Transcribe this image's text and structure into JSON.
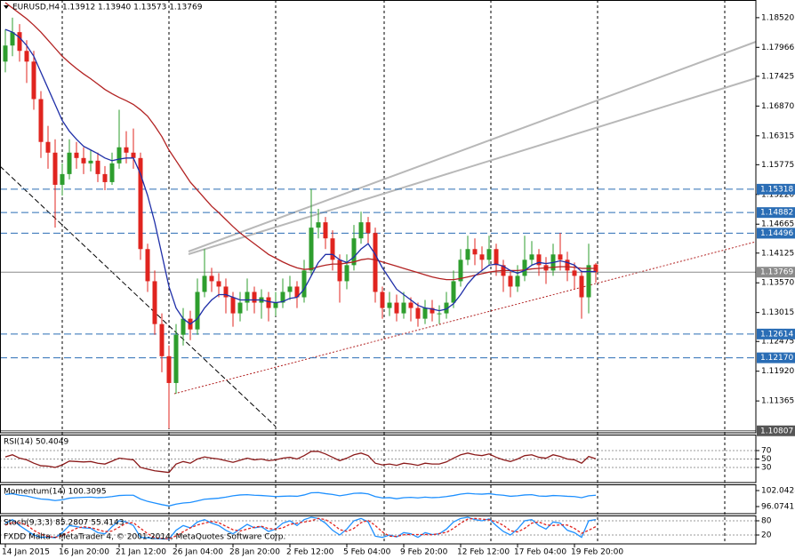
{
  "chart_data": [
    {
      "type": "candlestick",
      "title": "EURUSD,H4 1.13912 1.13940 1.13573 1.13769",
      "categories": [
        "14 Jan 2015",
        null,
        null,
        null,
        null,
        null,
        null,
        null,
        "16 Jan 20:00",
        null,
        null,
        null,
        null,
        null,
        null,
        null,
        "21 Jan 12:00",
        null,
        null,
        null,
        null,
        null,
        null,
        null,
        "26 Jan 04:00",
        null,
        null,
        null,
        null,
        null,
        null,
        null,
        "28 Jan 20:00",
        null,
        null,
        null,
        null,
        null,
        null,
        null,
        "2 Feb 12:00",
        null,
        null,
        null,
        null,
        null,
        null,
        null,
        "5 Feb 04:00",
        null,
        null,
        null,
        null,
        null,
        null,
        null,
        "9 Feb 20:00",
        null,
        null,
        null,
        null,
        null,
        null,
        null,
        "12 Feb 12:00",
        null,
        null,
        null,
        null,
        null,
        null,
        null,
        "17 Feb 04:00",
        null,
        null,
        null,
        null,
        null,
        null,
        null,
        "19 Feb 20:00",
        null,
        null,
        null
      ],
      "open": [
        1.177,
        1.18,
        1.1825,
        1.179,
        1.177,
        1.17,
        1.162,
        1.16,
        1.154,
        1.156,
        1.16,
        1.159,
        1.158,
        1.1585,
        1.156,
        1.1545,
        1.158,
        1.161,
        1.16,
        1.159,
        1.142,
        1.136,
        1.128,
        1.122,
        1.117,
        1.126,
        1.129,
        1.127,
        1.134,
        1.137,
        1.136,
        1.135,
        1.133,
        1.13,
        1.132,
        1.134,
        1.132,
        1.133,
        1.131,
        1.132,
        1.134,
        1.135,
        1.133,
        1.138,
        1.146,
        1.147,
        1.144,
        1.14,
        1.136,
        1.139,
        1.144,
        1.147,
        1.145,
        1.134,
        1.131,
        1.132,
        1.13,
        1.132,
        1.131,
        1.129,
        1.131,
        1.13,
        1.13,
        1.132,
        1.136,
        1.14,
        1.142,
        1.141,
        1.14,
        1.142,
        1.139,
        1.137,
        1.135,
        1.137,
        1.14,
        1.141,
        1.139,
        1.138,
        1.141,
        1.14,
        1.138,
        1.137,
        1.133,
        1.13912
      ],
      "high": [
        1.183,
        1.1852,
        1.184,
        1.181,
        1.179,
        1.1715,
        1.165,
        1.1625,
        1.158,
        1.1625,
        1.162,
        1.161,
        1.1605,
        1.16,
        1.1575,
        1.16,
        1.168,
        1.164,
        1.1645,
        1.16,
        1.143,
        1.138,
        1.13,
        1.124,
        1.128,
        1.131,
        1.1305,
        1.1365,
        1.142,
        1.1385,
        1.1375,
        1.1365,
        1.134,
        1.134,
        1.1365,
        1.135,
        1.1345,
        1.134,
        1.134,
        1.1365,
        1.137,
        1.136,
        1.14,
        1.1532,
        1.1495,
        1.148,
        1.1455,
        1.141,
        1.141,
        1.1465,
        1.149,
        1.148,
        1.146,
        1.135,
        1.134,
        1.1335,
        1.134,
        1.133,
        1.132,
        1.1325,
        1.1325,
        1.1315,
        1.134,
        1.138,
        1.142,
        1.1445,
        1.144,
        1.1425,
        1.1445,
        1.143,
        1.14,
        1.138,
        1.139,
        1.1445,
        1.1435,
        1.142,
        1.1405,
        1.143,
        1.145,
        1.1415,
        1.1395,
        1.138,
        1.143,
        1.1394
      ],
      "low": [
        1.175,
        1.178,
        1.177,
        1.173,
        1.168,
        1.159,
        1.157,
        1.146,
        1.152,
        1.155,
        1.157,
        1.156,
        1.1565,
        1.1545,
        1.153,
        1.154,
        1.157,
        1.158,
        1.157,
        1.14,
        1.134,
        1.126,
        1.119,
        1.1085,
        1.115,
        1.124,
        1.125,
        1.126,
        1.133,
        1.134,
        1.133,
        1.13,
        1.1275,
        1.1285,
        1.1305,
        1.13,
        1.129,
        1.1285,
        1.1295,
        1.131,
        1.1325,
        1.131,
        1.132,
        1.137,
        1.144,
        1.142,
        1.138,
        1.132,
        1.1345,
        1.138,
        1.143,
        1.143,
        1.132,
        1.129,
        1.1295,
        1.1285,
        1.129,
        1.1285,
        1.1275,
        1.128,
        1.1285,
        1.128,
        1.129,
        1.131,
        1.135,
        1.139,
        1.139,
        1.138,
        1.139,
        1.137,
        1.134,
        1.133,
        1.134,
        1.136,
        1.139,
        1.137,
        1.1355,
        1.137,
        1.138,
        1.136,
        1.1345,
        1.129,
        1.13,
        1.13573
      ],
      "close": [
        1.18,
        1.1825,
        1.179,
        1.177,
        1.17,
        1.162,
        1.16,
        1.154,
        1.156,
        1.16,
        1.159,
        1.158,
        1.1585,
        1.156,
        1.1545,
        1.158,
        1.161,
        1.16,
        1.159,
        1.142,
        1.136,
        1.128,
        1.122,
        1.117,
        1.126,
        1.129,
        1.127,
        1.134,
        1.137,
        1.136,
        1.135,
        1.133,
        1.13,
        1.132,
        1.134,
        1.132,
        1.133,
        1.131,
        1.132,
        1.134,
        1.135,
        1.133,
        1.138,
        1.146,
        1.147,
        1.144,
        1.14,
        1.136,
        1.139,
        1.144,
        1.147,
        1.145,
        1.134,
        1.131,
        1.132,
        1.13,
        1.132,
        1.131,
        1.129,
        1.131,
        1.13,
        1.13,
        1.132,
        1.136,
        1.14,
        1.142,
        1.141,
        1.14,
        1.142,
        1.139,
        1.137,
        1.135,
        1.137,
        1.14,
        1.141,
        1.139,
        1.138,
        1.141,
        1.14,
        1.138,
        1.137,
        1.133,
        1.139,
        1.13769
      ],
      "up_color": "#2e9e2e",
      "down_color": "#e0241f",
      "series": [
        {
          "color": "#b22222",
          "values": [
            1.188,
            1.187,
            1.186,
            1.185,
            1.1838,
            1.1825,
            1.181,
            1.1795,
            1.178,
            1.1768,
            1.1757,
            1.1747,
            1.1738,
            1.1728,
            1.1718,
            1.171,
            1.1703,
            1.1697,
            1.169,
            1.168,
            1.1668,
            1.165,
            1.163,
            1.1605,
            1.1585,
            1.1565,
            1.1545,
            1.153,
            1.1515,
            1.15,
            1.1488,
            1.1475,
            1.1462,
            1.145,
            1.144,
            1.143,
            1.142,
            1.141,
            1.1403,
            1.1396,
            1.139,
            1.1385,
            1.1382,
            1.1383,
            1.1387,
            1.139,
            1.1392,
            1.1392,
            1.1394,
            1.1396,
            1.14,
            1.1402,
            1.14,
            1.1396,
            1.1392,
            1.1388,
            1.1384,
            1.138,
            1.1376,
            1.1372,
            1.1368,
            1.1365,
            1.1363,
            1.1363,
            1.1365,
            1.1368,
            1.1371,
            1.1374,
            1.1377,
            1.1379,
            1.138,
            1.138,
            1.138,
            1.1381,
            1.1383,
            1.1384,
            1.1385,
            1.1386,
            1.1387,
            1.1387,
            1.1386,
            1.1384,
            1.1384,
            1.1384
          ]
        },
        {
          "color": "#1f2fa8",
          "values": [
            1.183,
            1.1825,
            1.1815,
            1.18,
            1.178,
            1.175,
            1.172,
            1.169,
            1.166,
            1.164,
            1.1625,
            1.1612,
            1.1605,
            1.1598,
            1.159,
            1.1585,
            1.1588,
            1.159,
            1.159,
            1.156,
            1.152,
            1.147,
            1.141,
            1.135,
            1.131,
            1.129,
            1.128,
            1.129,
            1.131,
            1.1325,
            1.1335,
            1.1335,
            1.133,
            1.1325,
            1.1325,
            1.1325,
            1.1325,
            1.1322,
            1.132,
            1.1322,
            1.1328,
            1.133,
            1.1345,
            1.137,
            1.1395,
            1.141,
            1.141,
            1.14,
            1.1395,
            1.1405,
            1.142,
            1.143,
            1.141,
            1.1385,
            1.1365,
            1.1345,
            1.1335,
            1.1325,
            1.1315,
            1.131,
            1.1308,
            1.1305,
            1.1308,
            1.1318,
            1.1335,
            1.1355,
            1.137,
            1.138,
            1.139,
            1.1392,
            1.1388,
            1.138,
            1.1375,
            1.138,
            1.139,
            1.1395,
            1.1393,
            1.1395,
            1.1398,
            1.1395,
            1.139,
            1.1378,
            1.1378,
            1.1378
          ]
        }
      ],
      "ylim": [
        1.1077,
        1.1885
      ],
      "yticks": [
        {
          "value": 1.1852,
          "label": "1.18520"
        },
        1.17966,
        1.17425,
        {
          "value": 1.1687,
          "label": "1.16870"
        },
        1.16315,
        1.15775,
        {
          "value": 1.1522,
          "label": "1.15220"
        },
        1.14665,
        1.14125,
        {
          "value": 1.1357,
          "label": "1.13570"
        },
        1.13015,
        1.12475,
        {
          "value": 1.1192,
          "label": "1.11920"
        },
        1.11365
      ],
      "grid": false,
      "levels": [
        {
          "value": 1.15318,
          "label": "1.15318",
          "color": "#2a6db5",
          "style": "dashed"
        },
        {
          "value": 1.14882,
          "label": "1.14882",
          "color": "#2a6db5",
          "style": "dashed"
        },
        {
          "value": 1.14496,
          "label": "1.14496",
          "color": "#2a6db5",
          "style": "dashed"
        },
        {
          "value": 1.13769,
          "label": "1.13769",
          "color": "#8a8a8a",
          "style": "solid"
        },
        {
          "value": 1.12614,
          "label": "1.12614",
          "color": "#2a6db5",
          "style": "dashed"
        },
        {
          "value": 1.1217,
          "label": "1.12170",
          "color": "#2a6db5",
          "style": "dashed"
        },
        {
          "value": 1.10807,
          "label": "1.10807",
          "color": "#555555",
          "style": "solid"
        }
      ]
    },
    {
      "type": "line",
      "title": "RSI(14) 50.4049",
      "ylim": [
        -6,
        108
      ],
      "yticks": [
        30,
        50,
        70
      ],
      "grid": true,
      "series": [
        {
          "color": "#8b1a1a",
          "values": [
            55,
            60,
            52,
            48,
            40,
            34,
            33,
            30,
            36,
            45,
            44,
            43,
            44,
            40,
            38,
            45,
            52,
            50,
            48,
            30,
            26,
            22,
            20,
            18,
            38,
            44,
            40,
            50,
            55,
            52,
            50,
            46,
            42,
            47,
            52,
            48,
            50,
            46,
            48,
            52,
            54,
            50,
            58,
            68,
            68,
            62,
            54,
            46,
            52,
            60,
            64,
            58,
            40,
            36,
            38,
            35,
            40,
            38,
            35,
            40,
            38,
            38,
            43,
            52,
            60,
            64,
            60,
            58,
            62,
            54,
            48,
            44,
            50,
            58,
            60,
            54,
            52,
            60,
            56,
            50,
            48,
            40,
            56,
            50.4049
          ]
        }
      ]
    },
    {
      "type": "line",
      "title": "Momentum(14) 100.3095",
      "ylim": [
        93.42,
        104.36
      ],
      "yticks": [
        96.0741,
        102.0428
      ],
      "grid": false,
      "series": [
        {
          "color": "#1e90ff",
          "values": [
            100.6,
            100.9,
            100.3,
            100.0,
            99.4,
            98.9,
            98.7,
            98.3,
            98.6,
            99.2,
            99.4,
            99.5,
            99.6,
            99.4,
            99.5,
            99.8,
            100.2,
            100.3,
            100.3,
            98.9,
            98.0,
            97.4,
            96.8,
            96.3,
            97.0,
            97.4,
            97.6,
            98.2,
            98.8,
            99.0,
            99.2,
            99.6,
            100.1,
            100.4,
            100.5,
            100.3,
            100.2,
            100.0,
            99.8,
            99.9,
            100.0,
            99.9,
            100.4,
            101.2,
            101.3,
            100.9,
            100.6,
            100.1,
            100.5,
            101.0,
            101.1,
            100.8,
            99.8,
            99.3,
            99.4,
            99.0,
            99.4,
            99.5,
            99.3,
            99.6,
            99.4,
            99.5,
            99.8,
            100.2,
            100.7,
            101.0,
            100.8,
            100.7,
            100.9,
            100.5,
            100.3,
            99.9,
            100.1,
            100.4,
            100.5,
            100.0,
            99.9,
            100.2,
            100.1,
            99.9,
            99.8,
            99.4,
            100.1,
            100.3095
          ]
        }
      ]
    },
    {
      "type": "line",
      "title": "Stoch(9,3,3) 85.2807 55.4143",
      "ylim": [
        -17.5,
        102.5
      ],
      "yticks": [
        20,
        80
      ],
      "grid": true,
      "series": [
        {
          "color": "#1e90ff",
          "dash": false,
          "values": [
            70,
            85,
            60,
            40,
            20,
            10,
            12,
            8,
            30,
            60,
            55,
            50,
            48,
            30,
            25,
            55,
            80,
            75,
            60,
            10,
            8,
            5,
            4,
            3,
            40,
            60,
            50,
            75,
            85,
            70,
            60,
            40,
            25,
            45,
            65,
            50,
            55,
            35,
            45,
            70,
            80,
            60,
            85,
            95,
            90,
            70,
            40,
            20,
            45,
            80,
            90,
            75,
            15,
            10,
            20,
            12,
            30,
            25,
            10,
            30,
            22,
            25,
            45,
            75,
            90,
            95,
            85,
            80,
            88,
            60,
            35,
            20,
            45,
            80,
            85,
            60,
            45,
            75,
            70,
            40,
            30,
            10,
            80,
            85.2807
          ]
        },
        {
          "color": "#e0241f",
          "dash": true,
          "values": [
            62,
            72,
            72,
            62,
            40,
            23,
            14,
            10,
            17,
            33,
            48,
            55,
            51,
            43,
            34,
            37,
            53,
            70,
            72,
            48,
            26,
            8,
            6,
            4,
            16,
            34,
            50,
            62,
            70,
            77,
            72,
            57,
            42,
            37,
            45,
            53,
            57,
            47,
            45,
            50,
            65,
            70,
            75,
            80,
            90,
            85,
            67,
            43,
            35,
            48,
            72,
            82,
            60,
            33,
            15,
            14,
            21,
            22,
            22,
            22,
            21,
            26,
            31,
            48,
            70,
            87,
            90,
            87,
            84,
            76,
            61,
            38,
            33,
            48,
            70,
            75,
            63,
            60,
            63,
            62,
            48,
            27,
            40,
            55.4143
          ]
        }
      ]
    }
  ],
  "footer": "FXDD Malta - MetaTrader 4, © 2001-2014, MetaQuotes Software Corp."
}
